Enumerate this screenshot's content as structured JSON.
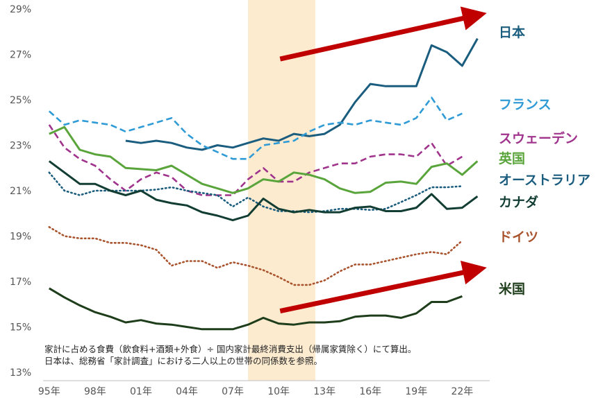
{
  "chart_data": {
    "type": "line",
    "y_ticks": [
      "13%",
      "15%",
      "17%",
      "19%",
      "21%",
      "23%",
      "25%",
      "27%",
      "29%"
    ],
    "y_tick_values": [
      13,
      15,
      17,
      19,
      21,
      23,
      25,
      27,
      29
    ],
    "ylim": [
      13,
      29
    ],
    "x_ticks": [
      "95年",
      "98年",
      "01年",
      "04年",
      "07年",
      "10年",
      "13年",
      "16年",
      "19年",
      "22年"
    ],
    "x_tick_values": [
      1995,
      1998,
      2001,
      2004,
      2007,
      2010,
      2013,
      2016,
      2019,
      2022
    ],
    "xlim": [
      1994.6,
      2023.8
    ],
    "grid": false,
    "highlight_band": {
      "from": 2008.0,
      "to": 2012.4,
      "color": "#fdebd0"
    },
    "arrows": [
      {
        "from": [
          2010.1,
          26.8
        ],
        "to": [
          2022.8,
          28.7
        ],
        "color": "#c00000"
      },
      {
        "from": [
          2010.1,
          15.7
        ],
        "to": [
          2022.8,
          17.5
        ],
        "color": "#c00000"
      }
    ],
    "series": [
      {
        "name": "日本",
        "color": "#1b5d7e",
        "style": "solid",
        "x": [
          2000,
          2001,
          2002,
          2003,
          2004,
          2005,
          2006,
          2007,
          2008,
          2009,
          2010,
          2011,
          2012,
          2013,
          2014,
          2015,
          2016,
          2017,
          2018,
          2019,
          2020,
          2021,
          2022,
          2023
        ],
        "y": [
          23.2,
          23.1,
          23.2,
          23.1,
          22.9,
          22.8,
          23.0,
          22.9,
          23.1,
          23.3,
          23.2,
          23.5,
          23.4,
          23.5,
          23.9,
          24.9,
          25.7,
          25.6,
          25.6,
          25.6,
          27.4,
          27.1,
          26.5,
          27.7
        ]
      },
      {
        "name": "フランス",
        "color": "#2e9bd6",
        "style": "dashed",
        "x": [
          1995,
          1996,
          1997,
          1998,
          1999,
          2000,
          2001,
          2002,
          2003,
          2004,
          2005,
          2006,
          2007,
          2008,
          2009,
          2010,
          2011,
          2012,
          2013,
          2014,
          2015,
          2016,
          2017,
          2018,
          2019,
          2020,
          2021,
          2022
        ],
        "y": [
          24.5,
          23.9,
          24.1,
          24.0,
          23.9,
          23.6,
          23.8,
          24.0,
          24.2,
          23.5,
          23.0,
          22.7,
          22.4,
          22.4,
          23.0,
          23.1,
          23.2,
          23.6,
          23.9,
          24.0,
          23.9,
          24.1,
          24.0,
          23.9,
          24.2,
          25.1,
          24.1,
          24.4
        ]
      },
      {
        "name": "スウェーデン",
        "color": "#a0338c",
        "style": "dashed",
        "x": [
          1995,
          1996,
          1997,
          1998,
          1999,
          2000,
          2001,
          2002,
          2003,
          2004,
          2005,
          2006,
          2007,
          2008,
          2009,
          2010,
          2011,
          2012,
          2013,
          2014,
          2015,
          2016,
          2017,
          2018,
          2019,
          2020,
          2021,
          2022
        ],
        "y": [
          23.9,
          22.9,
          22.4,
          22.1,
          21.5,
          21.0,
          21.5,
          21.8,
          21.6,
          21.0,
          20.8,
          20.8,
          20.8,
          21.5,
          22.0,
          21.4,
          21.4,
          21.8,
          22.0,
          22.2,
          22.2,
          22.5,
          22.6,
          22.6,
          22.5,
          23.1,
          22.1,
          22.5
        ]
      },
      {
        "name": "英国",
        "color": "#5aa53b",
        "style": "solid",
        "x": [
          1995,
          1996,
          1997,
          1998,
          1999,
          2000,
          2001,
          2002,
          2003,
          2004,
          2005,
          2006,
          2007,
          2008,
          2009,
          2010,
          2011,
          2012,
          2013,
          2014,
          2015,
          2016,
          2017,
          2018,
          2019,
          2020,
          2021,
          2022,
          2023
        ],
        "y": [
          23.5,
          23.8,
          22.8,
          22.6,
          22.5,
          22.0,
          21.95,
          21.9,
          22.1,
          21.7,
          21.3,
          21.1,
          20.9,
          21.1,
          21.5,
          21.4,
          21.8,
          21.7,
          21.5,
          21.1,
          20.9,
          20.95,
          21.35,
          21.4,
          21.3,
          22.05,
          22.2,
          21.7,
          22.3
        ]
      },
      {
        "name": "オーストラリア",
        "color": "#1b5d7e",
        "style": "dotted",
        "x": [
          1995,
          1996,
          1997,
          1998,
          1999,
          2000,
          2001,
          2002,
          2003,
          2004,
          2005,
          2006,
          2007,
          2008,
          2009,
          2010,
          2011,
          2012,
          2013,
          2014,
          2015,
          2016,
          2017,
          2018,
          2019,
          2020,
          2021,
          2022
        ],
        "y": [
          21.8,
          21.0,
          20.8,
          21.0,
          21.0,
          21.0,
          21.0,
          21.05,
          21.15,
          21.0,
          20.9,
          20.8,
          20.3,
          20.7,
          20.3,
          20.1,
          20.1,
          20.05,
          20.1,
          20.2,
          20.2,
          20.15,
          20.2,
          20.5,
          20.8,
          21.15,
          21.15,
          21.2
        ]
      },
      {
        "name": "カナダ",
        "color": "#123d33",
        "style": "solid",
        "x": [
          1995,
          1996,
          1997,
          1998,
          1999,
          2000,
          2001,
          2002,
          2003,
          2004,
          2005,
          2006,
          2007,
          2008,
          2009,
          2010,
          2011,
          2012,
          2013,
          2014,
          2015,
          2016,
          2017,
          2018,
          2019,
          2020,
          2021,
          2022,
          2023
        ],
        "y": [
          22.3,
          21.8,
          21.3,
          21.3,
          21.0,
          20.8,
          21.0,
          20.6,
          20.45,
          20.35,
          20.05,
          19.9,
          19.7,
          19.9,
          20.65,
          20.2,
          20.05,
          20.15,
          20.05,
          20.05,
          20.25,
          20.3,
          20.1,
          20.1,
          20.25,
          20.85,
          20.2,
          20.25,
          20.75
        ]
      },
      {
        "name": "ドイツ",
        "color": "#a9532d",
        "style": "dotted",
        "x": [
          1995,
          1996,
          1997,
          1998,
          1999,
          2000,
          2001,
          2002,
          2003,
          2004,
          2005,
          2006,
          2007,
          2008,
          2009,
          2010,
          2011,
          2012,
          2013,
          2014,
          2015,
          2016,
          2017,
          2018,
          2019,
          2020,
          2021,
          2022
        ],
        "y": [
          19.4,
          19.0,
          18.9,
          18.9,
          18.7,
          18.7,
          18.6,
          18.4,
          17.7,
          17.9,
          17.9,
          17.6,
          17.85,
          17.7,
          17.5,
          17.2,
          16.85,
          16.85,
          17.05,
          17.45,
          17.75,
          17.75,
          17.9,
          18.05,
          18.2,
          18.3,
          18.2,
          18.8
        ]
      },
      {
        "name": "米国",
        "color": "#1e3d1a",
        "style": "solid",
        "x": [
          1995,
          1996,
          1997,
          1998,
          1999,
          2000,
          2001,
          2002,
          2003,
          2004,
          2005,
          2006,
          2007,
          2008,
          2009,
          2010,
          2011,
          2012,
          2013,
          2014,
          2015,
          2016,
          2017,
          2018,
          2019,
          2020,
          2021,
          2022
        ],
        "y": [
          16.7,
          16.3,
          15.95,
          15.65,
          15.45,
          15.2,
          15.3,
          15.15,
          15.1,
          15.0,
          14.9,
          14.9,
          14.9,
          15.1,
          15.4,
          15.15,
          15.1,
          15.2,
          15.2,
          15.25,
          15.45,
          15.5,
          15.5,
          15.4,
          15.6,
          16.1,
          16.1,
          16.35
        ]
      }
    ],
    "legend_labels": [
      {
        "text": "日本",
        "color": "#1b5d7e"
      },
      {
        "text": "フランス",
        "color": "#2e9bd6"
      },
      {
        "text": "スウェーデン",
        "color": "#a0338c"
      },
      {
        "text": "英国",
        "color": "#5aa53b"
      },
      {
        "text": "オーストラリア",
        "color": "#1b5d7e"
      },
      {
        "text": "カナダ",
        "color": "#123d33"
      },
      {
        "text": "ドイツ",
        "color": "#a9532d"
      },
      {
        "text": "米国",
        "color": "#1e3d1a"
      }
    ],
    "note": [
      "家計に占める食費（飲食料+酒類+外食）÷ 国内家計最終消費支出（帰属家賃除く）にて算出。",
      "日本は、総務省「家計調査」における二人以上の世帯の同係数を参照。"
    ]
  }
}
